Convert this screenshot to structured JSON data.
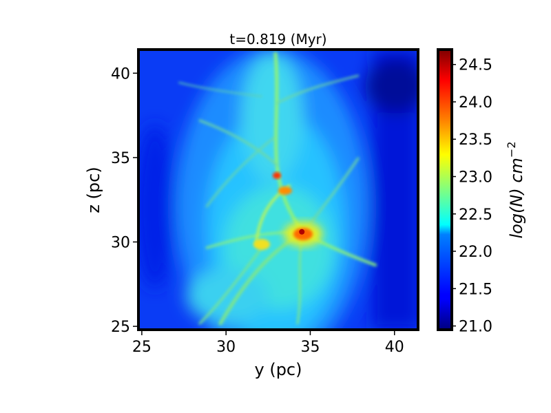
{
  "chart_data": {
    "type": "heatmap",
    "title": "t=0.819 (Myr)",
    "xlabel": "y (pc)",
    "ylabel": "z (pc)",
    "xlim": [
      24.8,
      41.4
    ],
    "ylim": [
      24.8,
      41.4
    ],
    "x_ticks": [
      25,
      30,
      35,
      40
    ],
    "y_ticks": [
      25,
      30,
      35,
      40
    ],
    "x_tick_labels": [
      "25",
      "30",
      "35",
      "40"
    ],
    "y_tick_labels": [
      "25",
      "30",
      "35",
      "40"
    ],
    "colormap": "jet",
    "colorbar": {
      "label_base": "log(N) cm",
      "label_exponent": "−2",
      "range": [
        20.95,
        24.7
      ],
      "ticks": [
        21.0,
        21.5,
        22.0,
        22.5,
        23.0,
        23.5,
        24.0,
        24.5
      ],
      "tick_labels": [
        "21.0",
        "21.5",
        "22.0",
        "22.5",
        "23.0",
        "23.5",
        "24.0",
        "24.5"
      ]
    },
    "field_description": "column density map of a filamentary molecular cloud; dense hub near (34.5, 30.6)",
    "peak": {
      "x": 34.5,
      "y": 30.6,
      "value": 24.6
    }
  }
}
